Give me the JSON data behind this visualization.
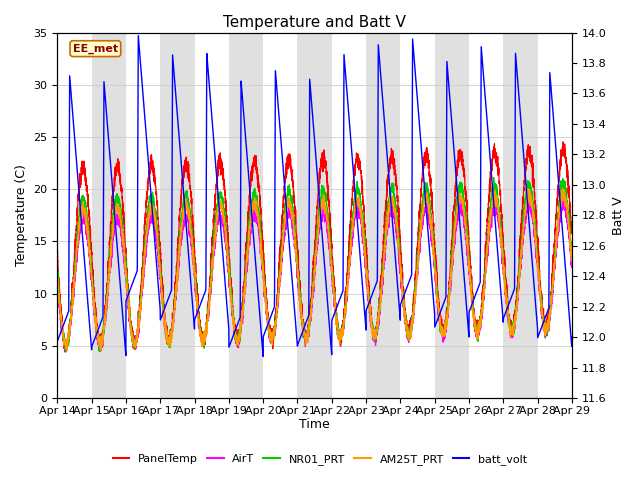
{
  "title": "Temperature and Batt V",
  "xlabel": "Time",
  "ylabel_left": "Temperature (C)",
  "ylabel_right": "Batt V",
  "annotation": "EE_met",
  "xlim": [
    0,
    15
  ],
  "ylim_left": [
    0,
    35
  ],
  "ylim_right": [
    11.6,
    14.0
  ],
  "x_tick_labels": [
    "Apr 14",
    "Apr 15",
    "Apr 16",
    "Apr 17",
    "Apr 18",
    "Apr 19",
    "Apr 20",
    "Apr 21",
    "Apr 22",
    "Apr 23",
    "Apr 24",
    "Apr 25",
    "Apr 26",
    "Apr 27",
    "Apr 28",
    "Apr 29"
  ],
  "legend_entries": [
    "PanelTemp",
    "AirT",
    "NR01_PRT",
    "AM25T_PRT",
    "batt_volt"
  ],
  "legend_colors": [
    "#ff0000",
    "#ff00ff",
    "#00cc00",
    "#ff9900",
    "#0000ff"
  ],
  "bg_band_color": "#e0e0e0",
  "title_fontsize": 11,
  "label_fontsize": 9,
  "tick_fontsize": 8,
  "batt_ylim": [
    11.6,
    14.0
  ],
  "temp_ylim": [
    0,
    35
  ]
}
